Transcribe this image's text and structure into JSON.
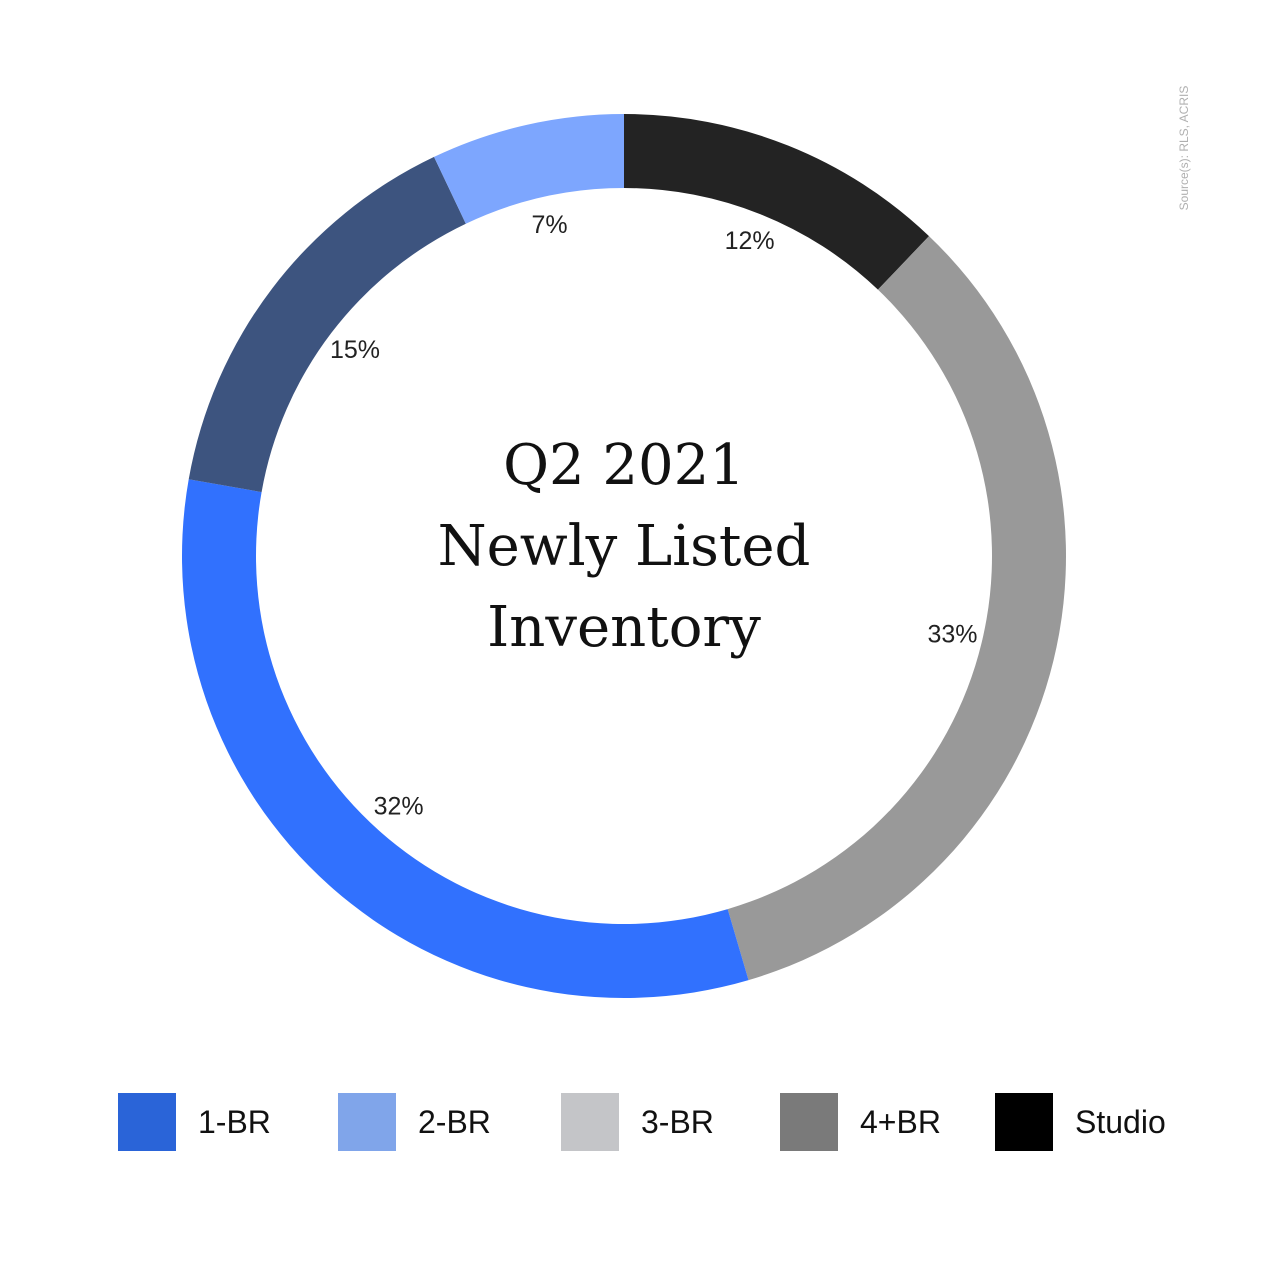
{
  "chart_data": {
    "type": "pie",
    "title": [
      "Q2 2021",
      "Newly Listed",
      "Inventory"
    ],
    "source": "Source(s): RLS, ACRIS",
    "slices": [
      {
        "name": "Studio",
        "value": 12,
        "label": "12%",
        "color": "#232323"
      },
      {
        "name": "3-BR",
        "value": 33,
        "label": "33%",
        "color": "#999999"
      },
      {
        "name": "1-BR",
        "value": 32,
        "label": "32%",
        "color": "#3171fe"
      },
      {
        "name": "4+BR",
        "value": 15,
        "label": "15%",
        "color": "#3d547f"
      },
      {
        "name": "2-BR",
        "value": 7,
        "label": "7%",
        "color": "#7da6fe"
      }
    ],
    "legend": {
      "placement": "bottom",
      "items": [
        {
          "name": "1-BR",
          "color": "#2a64d8"
        },
        {
          "name": "2-BR",
          "color": "#80a5ea"
        },
        {
          "name": "3-BR",
          "color": "#c4c5c8"
        },
        {
          "name": "4+BR",
          "color": "#7a7a7a"
        },
        {
          "name": "Studio",
          "color": "#000000"
        }
      ]
    }
  }
}
